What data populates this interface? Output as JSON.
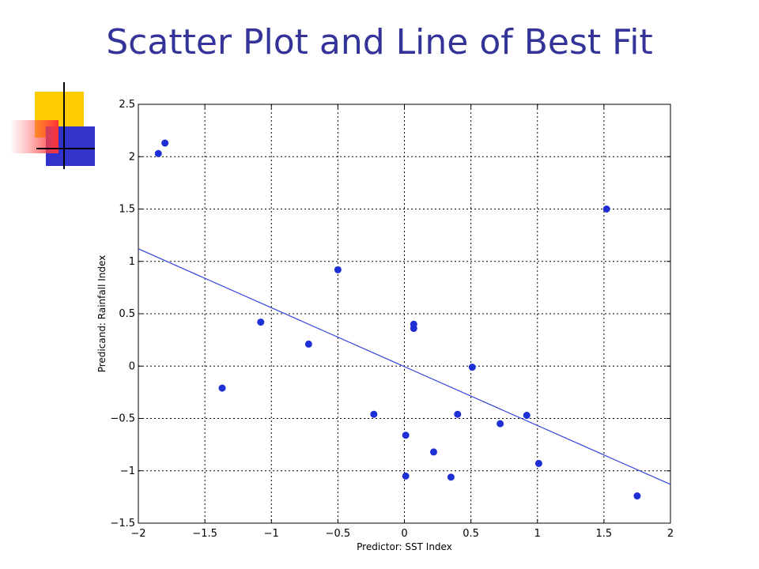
{
  "slide": {
    "title": "Scatter Plot and Line of Best Fit"
  },
  "colors": {
    "title": "#333399",
    "points": "#1f2fd6",
    "fit_line": "#3344dd",
    "grid": "#000000",
    "logo_yellow": "#ffcc00",
    "logo_red": "#ff3333",
    "logo_blue": "#3333cc"
  },
  "chart_data": {
    "type": "scatter",
    "title": "",
    "xlabel": "Predictor: SST Index",
    "ylabel": "Predicand: Rainfall Index",
    "xlim": [
      -2,
      2
    ],
    "ylim": [
      -1.5,
      2.5
    ],
    "xticks": [
      -2,
      -1.5,
      -1,
      -0.5,
      0,
      0.5,
      1,
      1.5,
      2
    ],
    "xtick_labels": [
      "−2",
      "−1.5",
      "−1",
      "−0.5",
      "0",
      "0.5",
      "1",
      "1.5",
      "2"
    ],
    "yticks": [
      -1.5,
      -1,
      -0.5,
      0,
      0.5,
      1,
      1.5,
      2,
      2.5
    ],
    "ytick_labels": [
      "−1.5",
      "−1",
      "−0.5",
      "0",
      "0.5",
      "1",
      "1.5",
      "2",
      "2.5"
    ],
    "grid": true,
    "points": {
      "x": [
        -1.85,
        -1.8,
        -1.37,
        -1.08,
        -0.72,
        -0.5,
        -0.23,
        0.01,
        0.01,
        0.07,
        0.07,
        0.22,
        0.35,
        0.4,
        0.51,
        0.72,
        0.92,
        1.01,
        1.52,
        1.75
      ],
      "y": [
        2.03,
        2.13,
        -0.21,
        0.42,
        0.21,
        0.92,
        -0.46,
        -0.66,
        -1.05,
        0.4,
        0.36,
        -0.82,
        -1.06,
        -0.46,
        -0.01,
        -0.55,
        -0.47,
        -0.93,
        1.5,
        -1.24
      ]
    },
    "fit_line": {
      "x": [
        -2,
        2
      ],
      "y": [
        1.12,
        -1.13
      ]
    }
  }
}
